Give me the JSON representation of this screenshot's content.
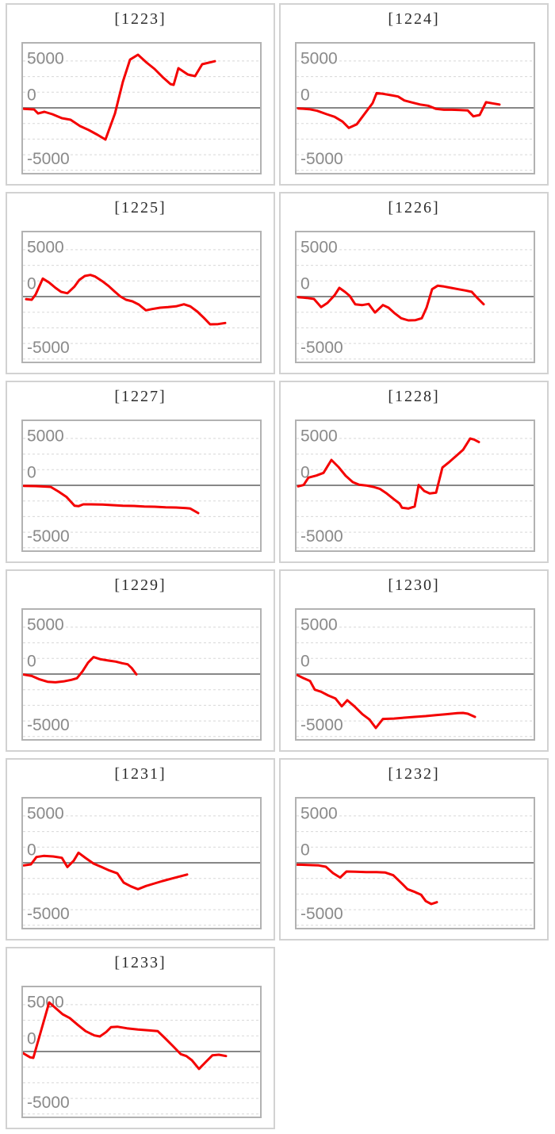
{
  "page": {
    "background": "#ffffff",
    "accent_colors": {
      "series_red": "#f40000",
      "zero_line_gray": "#878787",
      "grid_dotted_gray": "#d8d8d8",
      "plot_border_gray": "#b2b2b2",
      "cell_border_gray": "#d2d2d2",
      "tick_label_gray": "#8a8a8a",
      "title_color": "#2b2b2b"
    }
  },
  "chart_data": {
    "type": "line",
    "layout": {
      "columns": 2,
      "rows": 6,
      "cells": 11,
      "legend": "none",
      "grid": "dotted horizontal lines"
    },
    "y_axis": {
      "tick_labels": [
        "5000",
        "0",
        "-5000"
      ],
      "tick_values": [
        5000,
        0,
        -5000
      ],
      "ylim": [
        -6900,
        6900
      ],
      "minor_grid_interval": 1667,
      "zero_line": "solid gray"
    },
    "x_axis": {
      "tick_labels": "none",
      "x_unit": "plot-px (0-299), series lengths vary"
    },
    "charts": [
      {
        "title": "[1223]",
        "points": [
          [
            1,
            -100
          ],
          [
            14,
            -170
          ],
          [
            19,
            -600
          ],
          [
            27,
            -420
          ],
          [
            37,
            -680
          ],
          [
            49,
            -1100
          ],
          [
            60,
            -1270
          ],
          [
            72,
            -1950
          ],
          [
            83,
            -2370
          ],
          [
            94,
            -2880
          ],
          [
            104,
            -3390
          ],
          [
            116,
            -600
          ],
          [
            126,
            2800
          ],
          [
            135,
            5150
          ],
          [
            145,
            5680
          ],
          [
            156,
            4830
          ],
          [
            166,
            4150
          ],
          [
            176,
            3300
          ],
          [
            186,
            2540
          ],
          [
            190,
            2460
          ],
          [
            196,
            4240
          ],
          [
            208,
            3560
          ],
          [
            217,
            3390
          ],
          [
            226,
            4660
          ],
          [
            242,
            4980
          ]
        ]
      },
      {
        "title": "[1224]",
        "points": [
          [
            2,
            -60
          ],
          [
            16,
            -140
          ],
          [
            26,
            -310
          ],
          [
            38,
            -680
          ],
          [
            48,
            -960
          ],
          [
            58,
            -1470
          ],
          [
            66,
            -2140
          ],
          [
            76,
            -1750
          ],
          [
            86,
            -620
          ],
          [
            96,
            510
          ],
          [
            101,
            1580
          ],
          [
            109,
            1500
          ],
          [
            119,
            1360
          ],
          [
            128,
            1210
          ],
          [
            136,
            790
          ],
          [
            146,
            570
          ],
          [
            156,
            360
          ],
          [
            166,
            230
          ],
          [
            176,
            -110
          ],
          [
            186,
            -200
          ],
          [
            196,
            -200
          ],
          [
            206,
            -230
          ],
          [
            216,
            -280
          ],
          [
            223,
            -910
          ],
          [
            231,
            -760
          ],
          [
            239,
            600
          ],
          [
            247,
            480
          ],
          [
            256,
            360
          ]
        ]
      },
      {
        "title": "[1225]",
        "points": [
          [
            4,
            -280
          ],
          [
            11,
            -340
          ],
          [
            16,
            230
          ],
          [
            25,
            1920
          ],
          [
            33,
            1500
          ],
          [
            41,
            930
          ],
          [
            48,
            510
          ],
          [
            56,
            360
          ],
          [
            65,
            1080
          ],
          [
            71,
            1780
          ],
          [
            78,
            2200
          ],
          [
            85,
            2310
          ],
          [
            91,
            2140
          ],
          [
            100,
            1640
          ],
          [
            108,
            1130
          ],
          [
            116,
            510
          ],
          [
            123,
            0
          ],
          [
            130,
            -340
          ],
          [
            138,
            -510
          ],
          [
            146,
            -850
          ],
          [
            155,
            -1470
          ],
          [
            163,
            -1330
          ],
          [
            173,
            -1190
          ],
          [
            183,
            -1130
          ],
          [
            193,
            -1040
          ],
          [
            203,
            -820
          ],
          [
            211,
            -1040
          ],
          [
            220,
            -1610
          ],
          [
            228,
            -2260
          ],
          [
            236,
            -2970
          ],
          [
            246,
            -2940
          ],
          [
            255,
            -2820
          ]
        ]
      },
      {
        "title": "[1226]",
        "points": [
          [
            2,
            -60
          ],
          [
            13,
            -140
          ],
          [
            22,
            -250
          ],
          [
            31,
            -1130
          ],
          [
            39,
            -680
          ],
          [
            48,
            140
          ],
          [
            54,
            930
          ],
          [
            61,
            510
          ],
          [
            67,
            85
          ],
          [
            74,
            -820
          ],
          [
            83,
            -910
          ],
          [
            91,
            -790
          ],
          [
            99,
            -1700
          ],
          [
            109,
            -910
          ],
          [
            116,
            -1190
          ],
          [
            124,
            -1800
          ],
          [
            132,
            -2310
          ],
          [
            141,
            -2540
          ],
          [
            150,
            -2520
          ],
          [
            158,
            -2310
          ],
          [
            164,
            -1190
          ],
          [
            171,
            790
          ],
          [
            178,
            1160
          ],
          [
            186,
            1080
          ],
          [
            195,
            930
          ],
          [
            204,
            790
          ],
          [
            213,
            650
          ],
          [
            221,
            510
          ],
          [
            228,
            -140
          ],
          [
            236,
            -820
          ]
        ]
      },
      {
        "title": "[1227]",
        "points": [
          [
            1,
            -60
          ],
          [
            16,
            -85
          ],
          [
            31,
            -140
          ],
          [
            35,
            -170
          ],
          [
            45,
            -680
          ],
          [
            55,
            -1250
          ],
          [
            65,
            -2180
          ],
          [
            70,
            -2230
          ],
          [
            76,
            -2030
          ],
          [
            86,
            -2030
          ],
          [
            100,
            -2060
          ],
          [
            113,
            -2120
          ],
          [
            126,
            -2180
          ],
          [
            140,
            -2200
          ],
          [
            153,
            -2260
          ],
          [
            166,
            -2290
          ],
          [
            180,
            -2350
          ],
          [
            193,
            -2370
          ],
          [
            206,
            -2430
          ],
          [
            211,
            -2480
          ],
          [
            221,
            -2970
          ]
        ]
      },
      {
        "title": "[1228]",
        "points": [
          [
            2,
            -110
          ],
          [
            9,
            30
          ],
          [
            15,
            820
          ],
          [
            25,
            1040
          ],
          [
            34,
            1330
          ],
          [
            44,
            2710
          ],
          [
            53,
            1950
          ],
          [
            62,
            1020
          ],
          [
            71,
            340
          ],
          [
            79,
            60
          ],
          [
            89,
            -30
          ],
          [
            97,
            -170
          ],
          [
            105,
            -370
          ],
          [
            113,
            -820
          ],
          [
            123,
            -1500
          ],
          [
            130,
            -1950
          ],
          [
            133,
            -2400
          ],
          [
            141,
            -2480
          ],
          [
            149,
            -2260
          ],
          [
            154,
            30
          ],
          [
            161,
            -600
          ],
          [
            168,
            -870
          ],
          [
            176,
            -790
          ],
          [
            184,
            1900
          ],
          [
            193,
            2520
          ],
          [
            202,
            3190
          ],
          [
            210,
            3790
          ],
          [
            219,
            5000
          ],
          [
            224,
            4890
          ],
          [
            230,
            4630
          ]
        ]
      },
      {
        "title": "[1229]",
        "points": [
          [
            1,
            -60
          ],
          [
            11,
            -200
          ],
          [
            21,
            -570
          ],
          [
            31,
            -820
          ],
          [
            41,
            -880
          ],
          [
            51,
            -790
          ],
          [
            61,
            -620
          ],
          [
            68,
            -450
          ],
          [
            75,
            280
          ],
          [
            82,
            1210
          ],
          [
            89,
            1810
          ],
          [
            98,
            1580
          ],
          [
            108,
            1440
          ],
          [
            117,
            1330
          ],
          [
            125,
            1160
          ],
          [
            132,
            1040
          ],
          [
            137,
            650
          ],
          [
            143,
            -30
          ]
        ]
      },
      {
        "title": "[1230]",
        "points": [
          [
            1,
            -110
          ],
          [
            9,
            -450
          ],
          [
            17,
            -740
          ],
          [
            23,
            -1670
          ],
          [
            31,
            -1890
          ],
          [
            40,
            -2290
          ],
          [
            49,
            -2600
          ],
          [
            57,
            -3450
          ],
          [
            64,
            -2800
          ],
          [
            73,
            -3450
          ],
          [
            83,
            -4290
          ],
          [
            92,
            -4860
          ],
          [
            100,
            -5760
          ],
          [
            109,
            -4800
          ],
          [
            123,
            -4750
          ],
          [
            136,
            -4660
          ],
          [
            149,
            -4580
          ],
          [
            163,
            -4490
          ],
          [
            176,
            -4380
          ],
          [
            189,
            -4290
          ],
          [
            203,
            -4180
          ],
          [
            210,
            -4150
          ],
          [
            216,
            -4240
          ],
          [
            225,
            -4580
          ]
        ]
      },
      {
        "title": "[1231]",
        "points": [
          [
            1,
            -280
          ],
          [
            10,
            -170
          ],
          [
            17,
            620
          ],
          [
            26,
            740
          ],
          [
            38,
            680
          ],
          [
            49,
            530
          ],
          [
            56,
            -450
          ],
          [
            64,
            230
          ],
          [
            70,
            1080
          ],
          [
            79,
            510
          ],
          [
            89,
            -85
          ],
          [
            99,
            -450
          ],
          [
            109,
            -820
          ],
          [
            119,
            -1130
          ],
          [
            127,
            -2120
          ],
          [
            136,
            -2520
          ],
          [
            145,
            -2820
          ],
          [
            155,
            -2480
          ],
          [
            166,
            -2200
          ],
          [
            176,
            -1950
          ],
          [
            186,
            -1720
          ],
          [
            196,
            -1500
          ],
          [
            207,
            -1250
          ]
        ]
      },
      {
        "title": "[1232]",
        "points": [
          [
            1,
            -200
          ],
          [
            14,
            -230
          ],
          [
            28,
            -280
          ],
          [
            37,
            -420
          ],
          [
            46,
            -1100
          ],
          [
            55,
            -1580
          ],
          [
            63,
            -930
          ],
          [
            74,
            -960
          ],
          [
            88,
            -990
          ],
          [
            101,
            -990
          ],
          [
            112,
            -1040
          ],
          [
            122,
            -1330
          ],
          [
            132,
            -2140
          ],
          [
            140,
            -2820
          ],
          [
            149,
            -3110
          ],
          [
            157,
            -3410
          ],
          [
            163,
            -4090
          ],
          [
            170,
            -4410
          ],
          [
            177,
            -4210
          ]
        ]
      },
      {
        "title": "[1233]",
        "points": [
          [
            0,
            -170
          ],
          [
            9,
            -620
          ],
          [
            13,
            -680
          ],
          [
            33,
            5250
          ],
          [
            42,
            4580
          ],
          [
            50,
            3980
          ],
          [
            59,
            3580
          ],
          [
            69,
            2860
          ],
          [
            79,
            2180
          ],
          [
            90,
            1720
          ],
          [
            97,
            1610
          ],
          [
            105,
            2090
          ],
          [
            111,
            2600
          ],
          [
            119,
            2650
          ],
          [
            131,
            2480
          ],
          [
            145,
            2350
          ],
          [
            158,
            2260
          ],
          [
            170,
            2180
          ],
          [
            179,
            1440
          ],
          [
            189,
            590
          ],
          [
            199,
            -280
          ],
          [
            206,
            -480
          ],
          [
            213,
            -930
          ],
          [
            222,
            -1860
          ],
          [
            231,
            -1080
          ],
          [
            239,
            -400
          ],
          [
            247,
            -340
          ],
          [
            256,
            -480
          ]
        ]
      }
    ]
  }
}
